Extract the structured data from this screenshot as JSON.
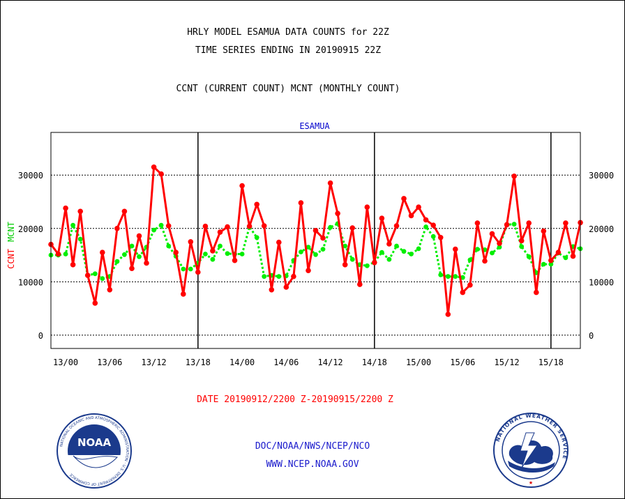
{
  "titles": {
    "line1": "HRLY MODEL ESAMUA DATA COUNTS for 22Z",
    "line2": "TIME SERIES ENDING IN 20190915 22Z",
    "line3": "CCNT (CURRENT COUNT) MCNT (MONTHLY COUNT)"
  },
  "footer": {
    "agency": "DOC/NOAA/NWS/NCEP/NCO",
    "url": "WWW.NCEP.NOAA.GOV"
  },
  "logos": {
    "noaa": {
      "center_text": "NOAA",
      "ring_text": "NATIONAL OCEANIC AND ATMOSPHERIC ADMINISTRATION · U.S. DEPARTMENT OF COMMERCE"
    },
    "nws": {
      "ring_text": "NATIONAL WEATHER SERVICE"
    }
  },
  "colors": {
    "ccnt": "#ff0000",
    "mcnt": "#00ee00",
    "panel_label": "#0000cc",
    "footer": "#1a1acc",
    "date": "#ff0000"
  },
  "chart_data": {
    "type": "line",
    "title": "ESAMUA",
    "xlabel": "DATE 20190912/2200 Z-20190915/2200 Z",
    "ylabel": "CCNT MCNT",
    "ylabel_parts": [
      "CCNT",
      "MCNT"
    ],
    "ylim": [
      -2500,
      38000
    ],
    "yticks": [
      0,
      10000,
      20000,
      30000
    ],
    "ytick_labels": [
      "0",
      "10000",
      "20000",
      "30000"
    ],
    "xtick_labels": [
      "13/00",
      "13/06",
      "13/12",
      "13/18",
      "14/00",
      "14/06",
      "14/12",
      "14/18",
      "15/00",
      "15/06",
      "15/12",
      "15/18"
    ],
    "grid": true,
    "day_dividers": [
      "13/18",
      "14/18",
      "15/18"
    ],
    "x_start": "12/22Z",
    "x_end": "15/22Z",
    "series": [
      {
        "name": "CCNT",
        "color": "#ff0000",
        "values": [
          17000,
          15200,
          23800,
          13200,
          23200,
          11200,
          6000,
          15500,
          8500,
          20000,
          23200,
          12500,
          18600,
          13500,
          31500,
          30200,
          20500,
          15500,
          7700,
          17500,
          11800,
          20400,
          15800,
          19300,
          20300,
          14000,
          28000,
          20400,
          24500,
          20500,
          8500,
          17400,
          9000,
          11000,
          24800,
          12100,
          19600,
          18200,
          28500,
          22800,
          13200,
          20100,
          9500,
          24000,
          13600,
          21900,
          17100,
          20500,
          25600,
          22400,
          24000,
          21600,
          20600,
          18300,
          3900,
          16100,
          8000,
          9400,
          21000,
          13900,
          19000,
          17200,
          20700,
          29800,
          17700,
          21000,
          8000,
          19500,
          14000,
          15500,
          21000,
          14800,
          21100
        ]
      },
      {
        "name": "MCNT",
        "color": "#00ee00",
        "values": [
          15000,
          15000,
          15200,
          20600,
          18000,
          11200,
          11500,
          10600,
          11000,
          13800,
          15100,
          16700,
          14700,
          16500,
          19700,
          20600,
          16700,
          14800,
          12400,
          12400,
          13500,
          15200,
          14200,
          16700,
          15300,
          15200,
          15200,
          20300,
          18300,
          11000,
          11200,
          11000,
          11100,
          14000,
          15600,
          16500,
          15100,
          16100,
          20200,
          20900,
          16700,
          14200,
          13200,
          13000,
          13700,
          15500,
          14200,
          16700,
          15700,
          15200,
          16200,
          20300,
          18500,
          11300,
          11000,
          11000,
          10800,
          14100,
          16100,
          16000,
          15400,
          16500,
          20700,
          20800,
          16600,
          14700,
          11700,
          13300,
          13300,
          15400,
          14500,
          16600,
          16200
        ]
      }
    ]
  }
}
